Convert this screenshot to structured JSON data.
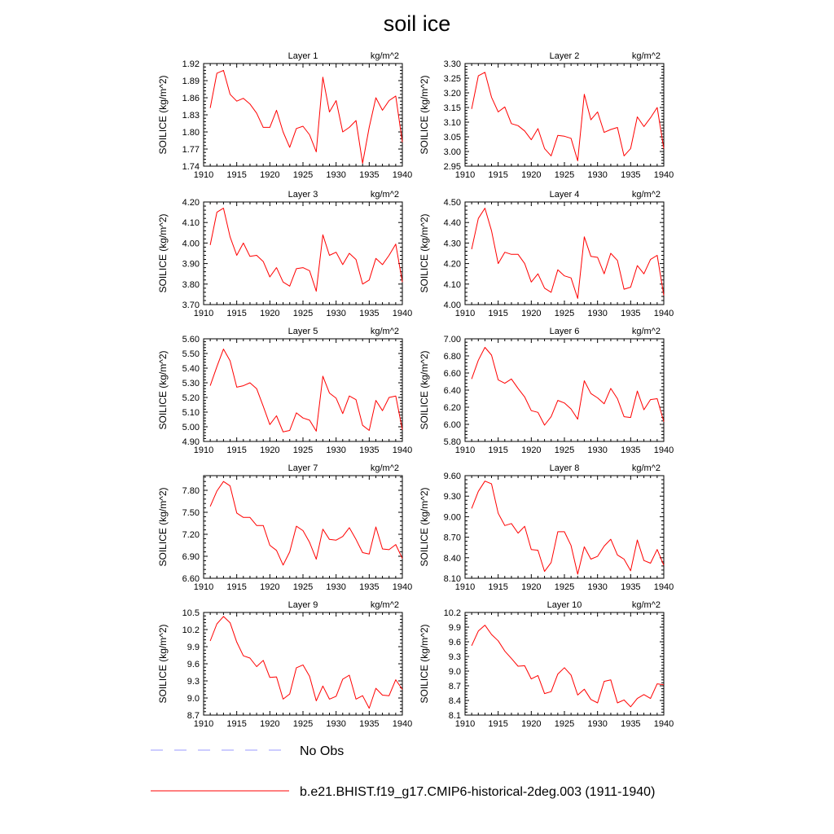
{
  "title": "soil ice",
  "legend": [
    {
      "label": "No Obs",
      "color": "#9999ff",
      "style": "dashed"
    },
    {
      "label": "b.e21.BHIST.f19_g17.CMIP6-historical-2deg.003 (1911-1940)",
      "color": "#ff0000",
      "style": "solid"
    }
  ],
  "chart_data": [
    {
      "type": "line",
      "title": "Layer 1",
      "units": "kg/m^2",
      "ylabel": "SOILICE  (kg/m^2)",
      "xlim": [
        1910,
        1940
      ],
      "xticks": [
        "1910",
        "1915",
        "1920",
        "1925",
        "1930",
        "1935",
        "1940"
      ],
      "ylim": [
        1.74,
        1.92
      ],
      "yticks": [
        "1.74",
        "1.77",
        "1.80",
        "1.83",
        "1.86",
        "1.89",
        "1.92"
      ],
      "x": [
        1911,
        1912,
        1913,
        1914,
        1915,
        1916,
        1917,
        1918,
        1919,
        1920,
        1921,
        1922,
        1923,
        1924,
        1925,
        1926,
        1927,
        1928,
        1929,
        1930,
        1931,
        1932,
        1933,
        1934,
        1935,
        1936,
        1937,
        1938,
        1939,
        1940
      ],
      "series": [
        {
          "color": "#ff0000",
          "values": [
            1.842,
            1.903,
            1.908,
            1.866,
            1.854,
            1.859,
            1.849,
            1.833,
            1.808,
            1.808,
            1.838,
            1.8,
            1.773,
            1.806,
            1.81,
            1.795,
            1.765,
            1.896,
            1.835,
            1.855,
            1.8,
            1.808,
            1.82,
            1.745,
            1.808,
            1.86,
            1.838,
            1.855,
            1.863,
            1.782
          ]
        }
      ]
    },
    {
      "type": "line",
      "title": "Layer 2",
      "units": "kg/m^2",
      "ylabel": "SOILICE  (kg/m^2)",
      "xlim": [
        1910,
        1940
      ],
      "xticks": [
        "1910",
        "1915",
        "1920",
        "1925",
        "1930",
        "1935",
        "1940"
      ],
      "ylim": [
        2.95,
        3.3
      ],
      "yticks": [
        "2.95",
        "3.00",
        "3.05",
        "3.10",
        "3.15",
        "3.20",
        "3.25",
        "3.30"
      ],
      "x": [
        1911,
        1912,
        1913,
        1914,
        1915,
        1916,
        1917,
        1918,
        1919,
        1920,
        1921,
        1922,
        1923,
        1924,
        1925,
        1926,
        1927,
        1928,
        1929,
        1930,
        1931,
        1932,
        1933,
        1934,
        1935,
        1936,
        1937,
        1938,
        1939,
        1940
      ],
      "series": [
        {
          "color": "#ff0000",
          "values": [
            3.145,
            3.258,
            3.27,
            3.185,
            3.135,
            3.152,
            3.095,
            3.088,
            3.07,
            3.04,
            3.078,
            3.01,
            2.985,
            3.055,
            3.052,
            3.045,
            2.968,
            3.195,
            3.108,
            3.135,
            3.065,
            3.075,
            3.082,
            2.985,
            3.01,
            3.118,
            3.085,
            3.115,
            3.15,
            3.01
          ]
        }
      ]
    },
    {
      "type": "line",
      "title": "Layer 3",
      "units": "kg/m^2",
      "ylabel": "SOILICE  (kg/m^2)",
      "xlim": [
        1910,
        1940
      ],
      "xticks": [
        "1910",
        "1915",
        "1920",
        "1925",
        "1930",
        "1935",
        "1940"
      ],
      "ylim": [
        3.7,
        4.2
      ],
      "yticks": [
        "3.70",
        "3.80",
        "3.90",
        "4.00",
        "4.10",
        "4.20"
      ],
      "x": [
        1911,
        1912,
        1913,
        1914,
        1915,
        1916,
        1917,
        1918,
        1919,
        1920,
        1921,
        1922,
        1923,
        1924,
        1925,
        1926,
        1927,
        1928,
        1929,
        1930,
        1931,
        1932,
        1933,
        1934,
        1935,
        1936,
        1937,
        1938,
        1939,
        1940
      ],
      "series": [
        {
          "color": "#ff0000",
          "values": [
            3.99,
            4.15,
            4.17,
            4.03,
            3.94,
            4.0,
            3.935,
            3.94,
            3.91,
            3.835,
            3.88,
            3.81,
            3.79,
            3.875,
            3.88,
            3.865,
            3.765,
            4.04,
            3.94,
            3.955,
            3.895,
            3.95,
            3.92,
            3.8,
            3.82,
            3.925,
            3.895,
            3.94,
            3.995,
            3.81
          ]
        }
      ]
    },
    {
      "type": "line",
      "title": "Layer 4",
      "units": "kg/m^2",
      "ylabel": "SOILICE  (kg/m^2)",
      "xlim": [
        1910,
        1940
      ],
      "xticks": [
        "1910",
        "1915",
        "1920",
        "1925",
        "1930",
        "1935",
        "1940"
      ],
      "ylim": [
        4.0,
        4.5
      ],
      "yticks": [
        "4.00",
        "4.10",
        "4.20",
        "4.30",
        "4.40",
        "4.50"
      ],
      "x": [
        1911,
        1912,
        1913,
        1914,
        1915,
        1916,
        1917,
        1918,
        1919,
        1920,
        1921,
        1922,
        1923,
        1924,
        1925,
        1926,
        1927,
        1928,
        1929,
        1930,
        1931,
        1932,
        1933,
        1934,
        1935,
        1936,
        1937,
        1938,
        1939,
        1940
      ],
      "series": [
        {
          "color": "#ff0000",
          "values": [
            4.27,
            4.42,
            4.47,
            4.36,
            4.2,
            4.255,
            4.245,
            4.245,
            4.2,
            4.11,
            4.15,
            4.08,
            4.06,
            4.17,
            4.14,
            4.13,
            4.03,
            4.33,
            4.235,
            4.23,
            4.15,
            4.25,
            4.215,
            4.075,
            4.085,
            4.19,
            4.15,
            4.22,
            4.24,
            4.045
          ]
        }
      ]
    },
    {
      "type": "line",
      "title": "Layer 5",
      "units": "kg/m^2",
      "ylabel": "SOILICE  (kg/m^2)",
      "xlim": [
        1910,
        1940
      ],
      "xticks": [
        "1910",
        "1915",
        "1920",
        "1925",
        "1930",
        "1935",
        "1940"
      ],
      "ylim": [
        4.9,
        5.6
      ],
      "yticks": [
        "4.90",
        "5.00",
        "5.10",
        "5.20",
        "5.30",
        "5.40",
        "5.50",
        "5.60"
      ],
      "x": [
        1911,
        1912,
        1913,
        1914,
        1915,
        1916,
        1917,
        1918,
        1919,
        1920,
        1921,
        1922,
        1923,
        1924,
        1925,
        1926,
        1927,
        1928,
        1929,
        1930,
        1931,
        1932,
        1933,
        1934,
        1935,
        1936,
        1937,
        1938,
        1939,
        1940
      ],
      "series": [
        {
          "color": "#ff0000",
          "values": [
            5.28,
            5.41,
            5.53,
            5.45,
            5.27,
            5.28,
            5.3,
            5.26,
            5.14,
            5.015,
            5.075,
            4.965,
            4.975,
            5.095,
            5.06,
            5.045,
            4.97,
            5.345,
            5.23,
            5.195,
            5.09,
            5.21,
            5.185,
            5.01,
            4.975,
            5.18,
            5.11,
            5.2,
            5.21,
            4.98
          ]
        }
      ]
    },
    {
      "type": "line",
      "title": "Layer 6",
      "units": "kg/m^2",
      "ylabel": "SOILICE  (kg/m^2)",
      "xlim": [
        1910,
        1940
      ],
      "xticks": [
        "1910",
        "1915",
        "1920",
        "1925",
        "1930",
        "1935",
        "1940"
      ],
      "ylim": [
        5.8,
        7.0
      ],
      "yticks": [
        "5.80",
        "6.00",
        "6.20",
        "6.40",
        "6.60",
        "6.80",
        "7.00"
      ],
      "x": [
        1911,
        1912,
        1913,
        1914,
        1915,
        1916,
        1917,
        1918,
        1919,
        1920,
        1921,
        1922,
        1923,
        1924,
        1925,
        1926,
        1927,
        1928,
        1929,
        1930,
        1931,
        1932,
        1933,
        1934,
        1935,
        1936,
        1937,
        1938,
        1939,
        1940
      ],
      "series": [
        {
          "color": "#ff0000",
          "values": [
            6.53,
            6.75,
            6.9,
            6.81,
            6.52,
            6.48,
            6.53,
            6.42,
            6.32,
            6.16,
            6.14,
            5.99,
            6.09,
            6.28,
            6.25,
            6.18,
            6.06,
            6.51,
            6.36,
            6.31,
            6.24,
            6.42,
            6.3,
            6.09,
            6.08,
            6.39,
            6.17,
            6.29,
            6.3,
            6.03
          ]
        }
      ]
    },
    {
      "type": "line",
      "title": "Layer 7",
      "units": "kg/m^2",
      "ylabel": "SOILICE  (kg/m^2)",
      "xlim": [
        1910,
        1940
      ],
      "xticks": [
        "1910",
        "1915",
        "1920",
        "1925",
        "1930",
        "1935",
        "1940"
      ],
      "ylim": [
        6.6,
        8.0
      ],
      "yticks": [
        "6.60",
        "6.90",
        "7.20",
        "7.50",
        "7.80"
      ],
      "x": [
        1911,
        1912,
        1913,
        1914,
        1915,
        1916,
        1917,
        1918,
        1919,
        1920,
        1921,
        1922,
        1923,
        1924,
        1925,
        1926,
        1927,
        1928,
        1929,
        1930,
        1931,
        1932,
        1933,
        1934,
        1935,
        1936,
        1937,
        1938,
        1939,
        1940
      ],
      "series": [
        {
          "color": "#ff0000",
          "values": [
            7.58,
            7.79,
            7.92,
            7.86,
            7.49,
            7.43,
            7.43,
            7.32,
            7.32,
            7.05,
            6.98,
            6.78,
            6.96,
            7.31,
            7.25,
            7.09,
            6.86,
            7.27,
            7.13,
            7.12,
            7.17,
            7.29,
            7.13,
            6.95,
            6.93,
            7.3,
            7.0,
            6.99,
            7.06,
            6.87
          ]
        }
      ]
    },
    {
      "type": "line",
      "title": "Layer 8",
      "units": "kg/m^2",
      "ylabel": "SOILICE  (kg/m^2)",
      "xlim": [
        1910,
        1940
      ],
      "xticks": [
        "1910",
        "1915",
        "1920",
        "1925",
        "1930",
        "1935",
        "1940"
      ],
      "ylim": [
        8.1,
        9.6
      ],
      "yticks": [
        "8.10",
        "8.40",
        "8.70",
        "9.00",
        "9.30",
        "9.60"
      ],
      "x": [
        1911,
        1912,
        1913,
        1914,
        1915,
        1916,
        1917,
        1918,
        1919,
        1920,
        1921,
        1922,
        1923,
        1924,
        1925,
        1926,
        1927,
        1928,
        1929,
        1930,
        1931,
        1932,
        1933,
        1934,
        1935,
        1936,
        1937,
        1938,
        1939,
        1940
      ],
      "series": [
        {
          "color": "#ff0000",
          "values": [
            9.12,
            9.37,
            9.52,
            9.48,
            9.05,
            8.87,
            8.9,
            8.76,
            8.86,
            8.52,
            8.51,
            8.2,
            8.33,
            8.78,
            8.78,
            8.58,
            8.16,
            8.56,
            8.38,
            8.42,
            8.57,
            8.67,
            8.44,
            8.38,
            8.21,
            8.66,
            8.36,
            8.32,
            8.52,
            8.29
          ]
        }
      ]
    },
    {
      "type": "line",
      "title": "Layer 9",
      "units": "kg/m^2",
      "ylabel": "SOILICE  (kg/m^2)",
      "xlim": [
        1910,
        1940
      ],
      "xticks": [
        "1910",
        "1915",
        "1920",
        "1925",
        "1930",
        "1935",
        "1940"
      ],
      "ylim": [
        8.7,
        10.5
      ],
      "yticks": [
        "8.7",
        "9.0",
        "9.3",
        "9.6",
        "9.9",
        "10.2",
        "10.5"
      ],
      "x": [
        1911,
        1912,
        1913,
        1914,
        1915,
        1916,
        1917,
        1918,
        1919,
        1920,
        1921,
        1922,
        1923,
        1924,
        1925,
        1926,
        1927,
        1928,
        1929,
        1930,
        1931,
        1932,
        1933,
        1934,
        1935,
        1936,
        1937,
        1938,
        1939,
        1940
      ],
      "series": [
        {
          "color": "#ff0000",
          "values": [
            10.0,
            10.3,
            10.43,
            10.32,
            9.98,
            9.74,
            9.7,
            9.55,
            9.66,
            9.36,
            9.37,
            8.98,
            9.07,
            9.53,
            9.58,
            9.38,
            8.95,
            9.21,
            8.98,
            9.03,
            9.33,
            9.4,
            8.98,
            9.04,
            8.82,
            9.17,
            9.05,
            9.04,
            9.32,
            9.15
          ]
        }
      ]
    },
    {
      "type": "line",
      "title": "Layer 10",
      "units": "kg/m^2",
      "ylabel": "SOILICE  (kg/m^2)",
      "xlim": [
        1910,
        1940
      ],
      "xticks": [
        "1910",
        "1915",
        "1920",
        "1925",
        "1930",
        "1935",
        "1940"
      ],
      "ylim": [
        8.1,
        10.2
      ],
      "yticks": [
        "8.1",
        "8.4",
        "8.7",
        "9.0",
        "9.3",
        "9.6",
        "9.9",
        "10.2"
      ],
      "x": [
        1911,
        1912,
        1913,
        1914,
        1915,
        1916,
        1917,
        1918,
        1919,
        1920,
        1921,
        1922,
        1923,
        1924,
        1925,
        1926,
        1927,
        1928,
        1929,
        1930,
        1931,
        1932,
        1933,
        1934,
        1935,
        1936,
        1937,
        1938,
        1939,
        1940
      ],
      "series": [
        {
          "color": "#ff0000",
          "values": [
            9.52,
            9.82,
            9.94,
            9.75,
            9.62,
            9.41,
            9.26,
            9.1,
            9.11,
            8.84,
            8.91,
            8.54,
            8.58,
            8.94,
            9.07,
            8.92,
            8.51,
            8.63,
            8.42,
            8.35,
            8.79,
            8.82,
            8.35,
            8.41,
            8.27,
            8.44,
            8.52,
            8.44,
            8.74,
            8.72
          ]
        }
      ]
    }
  ]
}
